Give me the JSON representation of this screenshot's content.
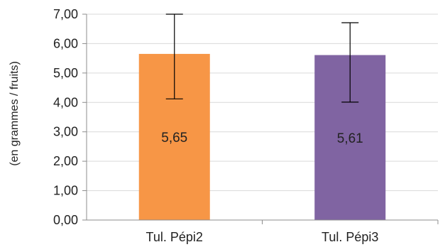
{
  "chart_data": {
    "type": "bar",
    "categories": [
      "Tul. Pépi2",
      "Tul. Pépi3"
    ],
    "values": [
      5.65,
      5.61
    ],
    "data_labels": [
      "5,65",
      "5,61"
    ],
    "error_bars": [
      {
        "low": 4.12,
        "high": 7.0
      },
      {
        "low": 4.01,
        "high": 6.71
      }
    ],
    "colors": [
      "#f79646",
      "#8064a2"
    ],
    "ylabel": "(en grammes / fruits)",
    "ylim": [
      0,
      7
    ],
    "yticks": [
      0,
      1,
      2,
      3,
      4,
      5,
      6,
      7
    ],
    "ytick_labels": [
      "0,00",
      "1,00",
      "2,00",
      "3,00",
      "4,00",
      "5,00",
      "6,00",
      "7,00"
    ],
    "grid": true,
    "legend": "none"
  }
}
